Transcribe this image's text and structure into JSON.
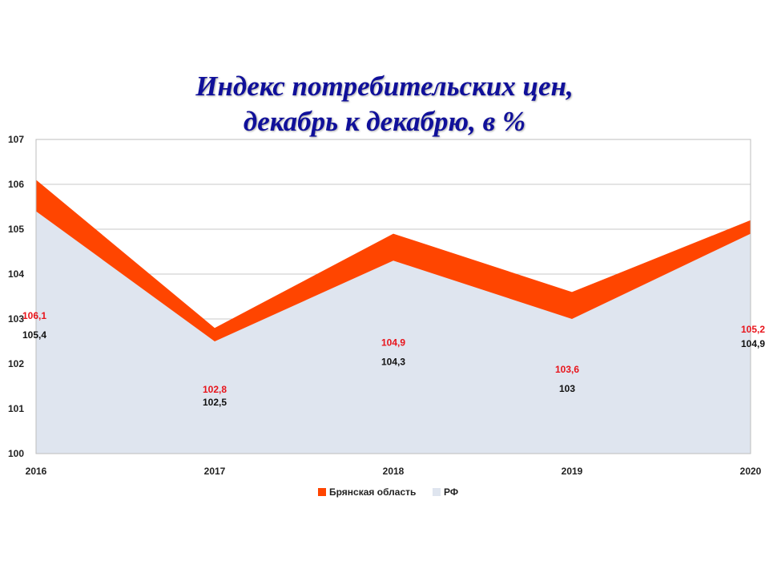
{
  "title": {
    "line1": "Индекс потребительских цен,",
    "line2": "декабрь к декабрю, в %"
  },
  "colors": {
    "bryansk": "#ff4500",
    "rf": "#dfe5ef",
    "bryansk_label": "#e8141b",
    "rf_label": "#111111",
    "grid": "#c8c8c8"
  },
  "chart_data": {
    "type": "area",
    "x": [
      "2016",
      "2017",
      "2018",
      "2019",
      "2020"
    ],
    "ylim": [
      100,
      107
    ],
    "yticks": [
      "100",
      "101",
      "102",
      "103",
      "104",
      "105",
      "106",
      "107"
    ],
    "grid": true,
    "legend": "bottom",
    "series": [
      {
        "name": "Брянская область",
        "values": [
          106.1,
          102.8,
          104.9,
          103.6,
          105.2
        ],
        "labels": [
          "106,1",
          "102,8",
          "104,9",
          "103,6",
          "105,2"
        ]
      },
      {
        "name": "РФ",
        "values": [
          105.4,
          102.5,
          104.3,
          103,
          104.9
        ],
        "labels": [
          "105,4",
          "102,5",
          "104,3",
          "103",
          "104,9"
        ]
      }
    ]
  }
}
